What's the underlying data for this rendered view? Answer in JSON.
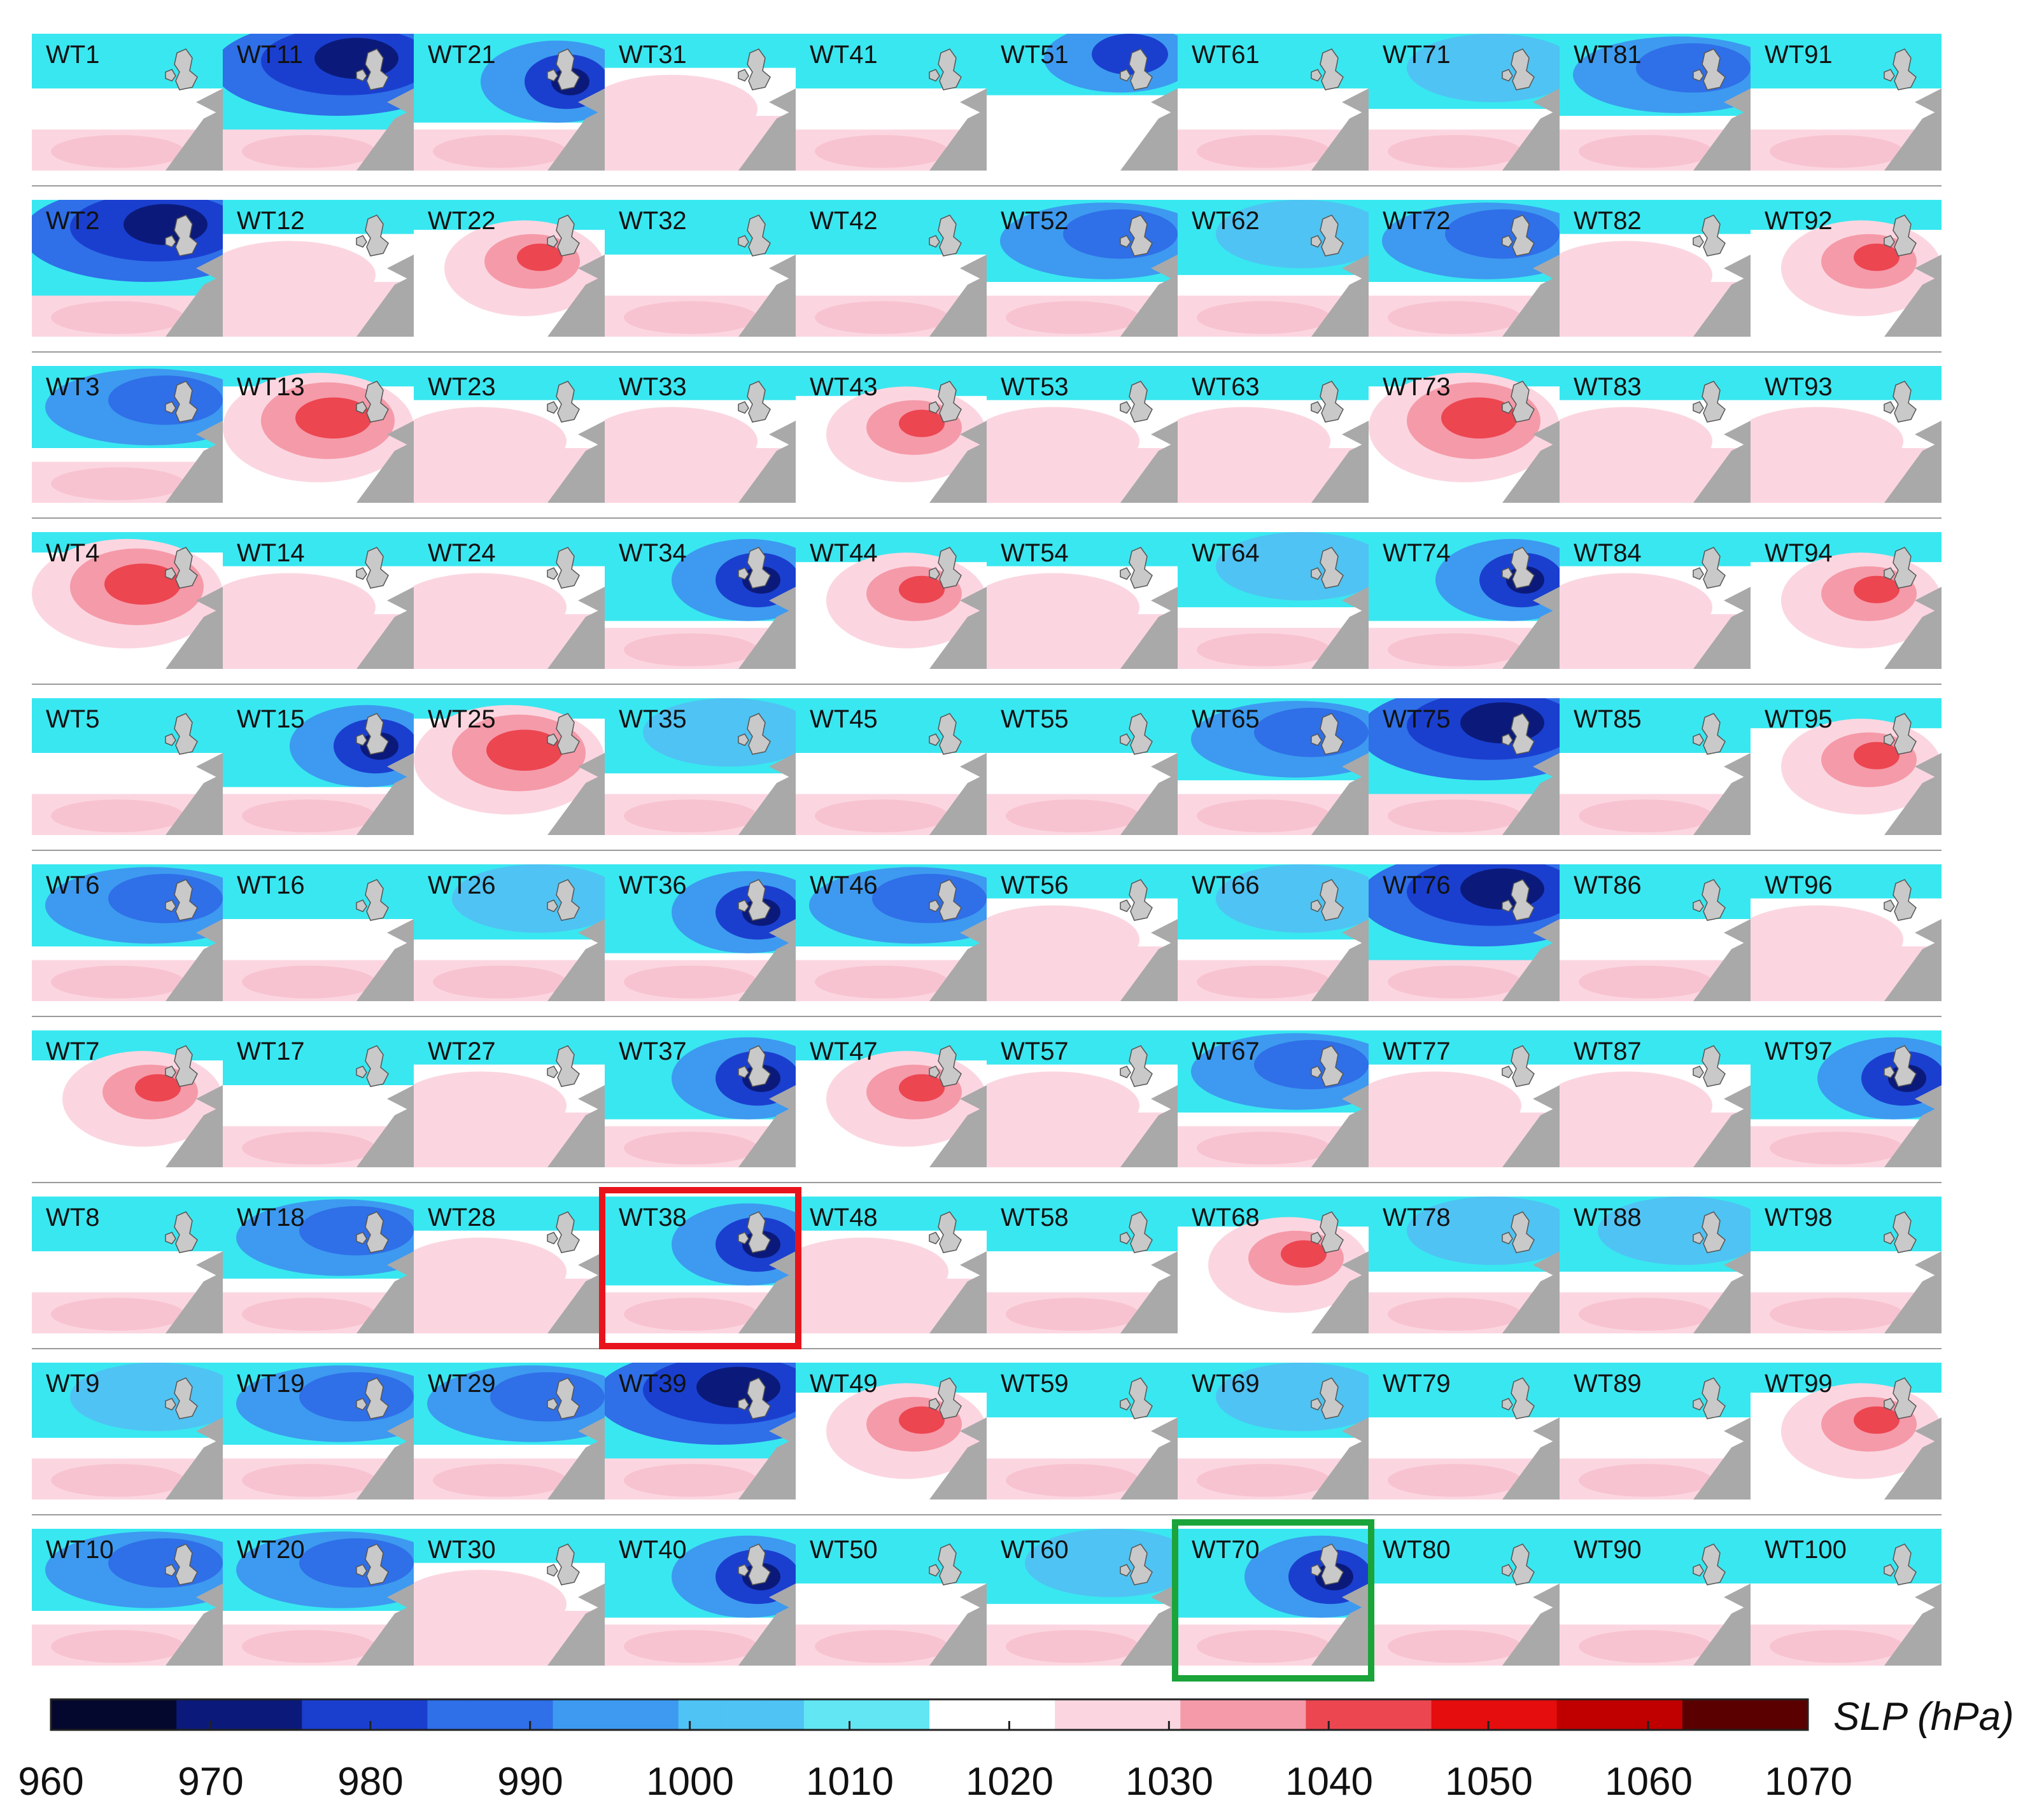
{
  "figure": {
    "unit_label": "SLP (hPa)",
    "colorbar": {
      "min": 960,
      "max": 1070,
      "step": 10,
      "tick_labels": [
        "960",
        "970",
        "980",
        "990",
        "1000",
        "1010",
        "1020",
        "1030",
        "1040",
        "1050",
        "1060",
        "1070"
      ],
      "colors": [
        "#05082e",
        "#0b1a7a",
        "#1a3fcf",
        "#2f6fe8",
        "#3d9af0",
        "#4fc3f3",
        "#62e6f3",
        "#ffffff",
        "#fbd6e0",
        "#f59aa9",
        "#ec4651",
        "#e50d0d",
        "#c00000",
        "#5a0000"
      ]
    },
    "highlight_colors": {
      "red_box": "#e8141c",
      "green_box": "#1aa43a"
    },
    "land_color": "#a9a9a9",
    "ocean_low_color": "#39e7f0",
    "neutral_color": "#ffffff"
  },
  "panels": [
    {
      "id": "WT1",
      "pattern": "zonal-weak"
    },
    {
      "id": "WT11",
      "pattern": "deep-low"
    },
    {
      "id": "WT21",
      "pattern": "low-uk"
    },
    {
      "id": "WT31",
      "pattern": "weak"
    },
    {
      "id": "WT41",
      "pattern": "zonal-weak"
    },
    {
      "id": "WT51",
      "pattern": "low-north"
    },
    {
      "id": "WT61",
      "pattern": "zonal-weak"
    },
    {
      "id": "WT71",
      "pattern": "zonal"
    },
    {
      "id": "WT81",
      "pattern": "low-mid"
    },
    {
      "id": "WT91",
      "pattern": "zonal-weak"
    },
    {
      "id": "WT2",
      "pattern": "deep-low"
    },
    {
      "id": "WT12",
      "pattern": "weak"
    },
    {
      "id": "WT22",
      "pattern": "high-east"
    },
    {
      "id": "WT32",
      "pattern": "zonal-weak"
    },
    {
      "id": "WT42",
      "pattern": "zonal-weak"
    },
    {
      "id": "WT52",
      "pattern": "low-mid"
    },
    {
      "id": "WT62",
      "pattern": "zonal"
    },
    {
      "id": "WT72",
      "pattern": "low-mid"
    },
    {
      "id": "WT82",
      "pattern": "weak"
    },
    {
      "id": "WT92",
      "pattern": "high-east"
    },
    {
      "id": "WT3",
      "pattern": "low-mid"
    },
    {
      "id": "WT13",
      "pattern": "high-strong"
    },
    {
      "id": "WT23",
      "pattern": "weak"
    },
    {
      "id": "WT33",
      "pattern": "weak"
    },
    {
      "id": "WT43",
      "pattern": "high-east"
    },
    {
      "id": "WT53",
      "pattern": "weak"
    },
    {
      "id": "WT63",
      "pattern": "weak"
    },
    {
      "id": "WT73",
      "pattern": "high-strong"
    },
    {
      "id": "WT83",
      "pattern": "weak"
    },
    {
      "id": "WT93",
      "pattern": "weak"
    },
    {
      "id": "WT4",
      "pattern": "high-strong"
    },
    {
      "id": "WT14",
      "pattern": "weak"
    },
    {
      "id": "WT24",
      "pattern": "weak"
    },
    {
      "id": "WT34",
      "pattern": "low-uk"
    },
    {
      "id": "WT44",
      "pattern": "high-east"
    },
    {
      "id": "WT54",
      "pattern": "weak"
    },
    {
      "id": "WT64",
      "pattern": "zonal"
    },
    {
      "id": "WT74",
      "pattern": "low-uk"
    },
    {
      "id": "WT84",
      "pattern": "weak"
    },
    {
      "id": "WT94",
      "pattern": "high-east"
    },
    {
      "id": "WT5",
      "pattern": "zonal-weak"
    },
    {
      "id": "WT15",
      "pattern": "low-uk"
    },
    {
      "id": "WT25",
      "pattern": "high-strong"
    },
    {
      "id": "WT35",
      "pattern": "zonal"
    },
    {
      "id": "WT45",
      "pattern": "zonal-weak"
    },
    {
      "id": "WT55",
      "pattern": "zonal-weak"
    },
    {
      "id": "WT65",
      "pattern": "low-mid"
    },
    {
      "id": "WT75",
      "pattern": "deep-low"
    },
    {
      "id": "WT85",
      "pattern": "zonal-weak"
    },
    {
      "id": "WT95",
      "pattern": "high-east"
    },
    {
      "id": "WT6",
      "pattern": "low-mid"
    },
    {
      "id": "WT16",
      "pattern": "zonal-weak"
    },
    {
      "id": "WT26",
      "pattern": "zonal"
    },
    {
      "id": "WT36",
      "pattern": "low-uk"
    },
    {
      "id": "WT46",
      "pattern": "low-mid"
    },
    {
      "id": "WT56",
      "pattern": "weak"
    },
    {
      "id": "WT66",
      "pattern": "zonal"
    },
    {
      "id": "WT76",
      "pattern": "deep-low"
    },
    {
      "id": "WT86",
      "pattern": "zonal-weak"
    },
    {
      "id": "WT96",
      "pattern": "weak"
    },
    {
      "id": "WT7",
      "pattern": "high-east"
    },
    {
      "id": "WT17",
      "pattern": "zonal-weak"
    },
    {
      "id": "WT27",
      "pattern": "weak"
    },
    {
      "id": "WT37",
      "pattern": "low-uk"
    },
    {
      "id": "WT47",
      "pattern": "high-east"
    },
    {
      "id": "WT57",
      "pattern": "weak"
    },
    {
      "id": "WT67",
      "pattern": "low-mid"
    },
    {
      "id": "WT77",
      "pattern": "weak"
    },
    {
      "id": "WT87",
      "pattern": "weak"
    },
    {
      "id": "WT97",
      "pattern": "low-uk"
    },
    {
      "id": "WT8",
      "pattern": "zonal-weak"
    },
    {
      "id": "WT18",
      "pattern": "low-mid"
    },
    {
      "id": "WT28",
      "pattern": "weak"
    },
    {
      "id": "WT38",
      "pattern": "low-uk",
      "highlight": "red"
    },
    {
      "id": "WT48",
      "pattern": "weak"
    },
    {
      "id": "WT58",
      "pattern": "zonal-weak"
    },
    {
      "id": "WT68",
      "pattern": "high-east"
    },
    {
      "id": "WT78",
      "pattern": "zonal"
    },
    {
      "id": "WT88",
      "pattern": "zonal"
    },
    {
      "id": "WT98",
      "pattern": "zonal-weak"
    },
    {
      "id": "WT9",
      "pattern": "zonal"
    },
    {
      "id": "WT19",
      "pattern": "low-mid"
    },
    {
      "id": "WT29",
      "pattern": "low-mid"
    },
    {
      "id": "WT39",
      "pattern": "deep-low"
    },
    {
      "id": "WT49",
      "pattern": "high-east"
    },
    {
      "id": "WT59",
      "pattern": "zonal-weak"
    },
    {
      "id": "WT69",
      "pattern": "zonal"
    },
    {
      "id": "WT79",
      "pattern": "zonal-weak"
    },
    {
      "id": "WT89",
      "pattern": "zonal-weak"
    },
    {
      "id": "WT99",
      "pattern": "high-east"
    },
    {
      "id": "WT10",
      "pattern": "low-mid"
    },
    {
      "id": "WT20",
      "pattern": "low-mid"
    },
    {
      "id": "WT30",
      "pattern": "weak"
    },
    {
      "id": "WT40",
      "pattern": "low-uk"
    },
    {
      "id": "WT50",
      "pattern": "zonal-weak"
    },
    {
      "id": "WT60",
      "pattern": "zonal"
    },
    {
      "id": "WT70",
      "pattern": "low-uk",
      "highlight": "green"
    },
    {
      "id": "WT80",
      "pattern": "zonal-weak"
    },
    {
      "id": "WT90",
      "pattern": "zonal-weak"
    },
    {
      "id": "WT100",
      "pattern": "zonal-weak"
    }
  ]
}
